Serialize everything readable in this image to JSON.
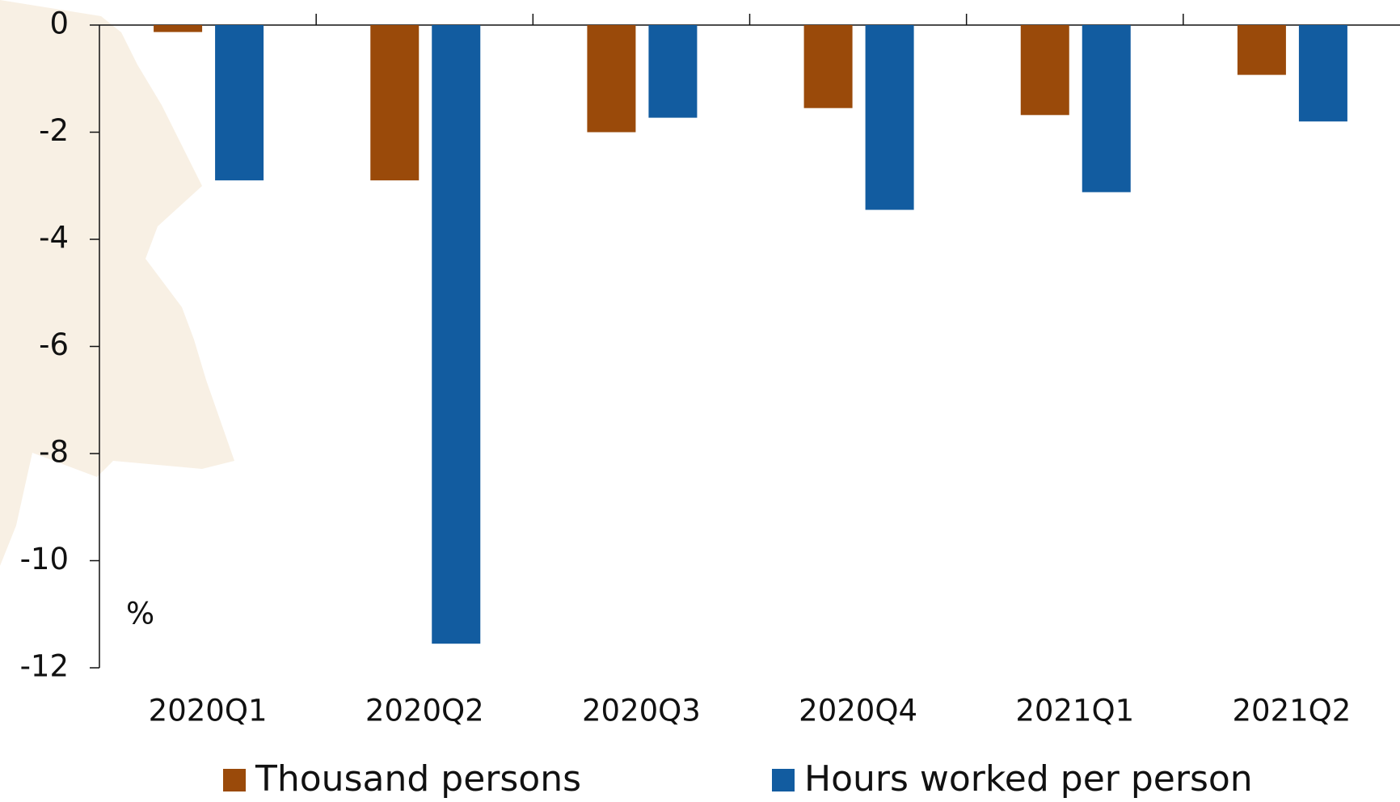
{
  "chart_data": {
    "type": "bar",
    "y_unit_label": "%",
    "categories": [
      "2020Q1",
      "2020Q2",
      "2020Q3",
      "2020Q4",
      "2021Q1",
      "2021Q2"
    ],
    "series": [
      {
        "name": "Thousand persons",
        "color": "#9a4a0a",
        "values": [
          -0.13,
          -2.9,
          -2.0,
          -1.55,
          -1.68,
          -0.93
        ]
      },
      {
        "name": "Hours worked per person",
        "color": "#125ca0",
        "values": [
          -2.9,
          -11.55,
          -1.73,
          -3.45,
          -3.12,
          -1.8
        ]
      }
    ],
    "ylim": [
      -12,
      0
    ],
    "yticks": [
      0,
      -2,
      -4,
      -6,
      -8,
      -10,
      -12
    ],
    "grid": false
  }
}
